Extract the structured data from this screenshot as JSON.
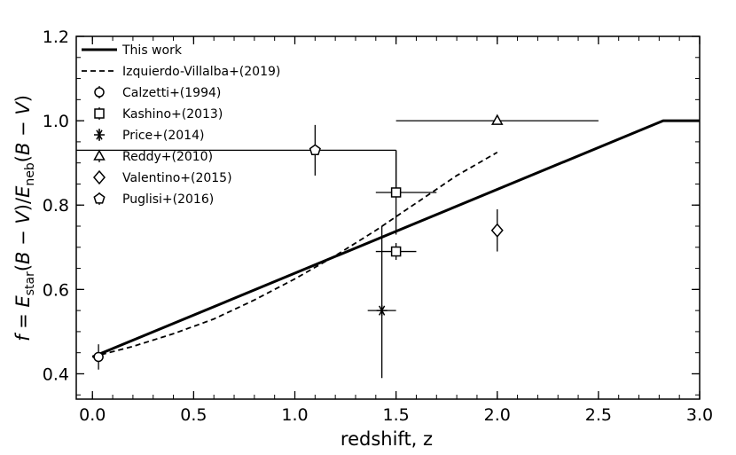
{
  "chart_data": {
    "type": "line",
    "title": "",
    "xlabel": "redshift, z",
    "ylabel": "f = E_star(B − V)/E_neb(B − V)",
    "xlim": [
      -0.08,
      3.0
    ],
    "ylim": [
      0.34,
      1.2
    ],
    "xticks": [
      0.0,
      0.5,
      1.0,
      1.5,
      2.0,
      2.5,
      3.0
    ],
    "xtick_labels": [
      "0.0",
      "0.5",
      "1.0",
      "1.5",
      "2.0",
      "2.5",
      "3.0"
    ],
    "yticks": [
      0.4,
      0.6,
      0.8,
      1.0,
      1.2
    ],
    "ytick_labels": [
      "0.4",
      "0.6",
      "0.8",
      "1.0",
      "1.2"
    ],
    "legend_position": "top-left",
    "lines": [
      {
        "name": "This work",
        "style": "solid",
        "x": [
          0.0,
          2.8,
          2.82,
          3.0
        ],
        "y": [
          0.44,
          0.996,
          1.0,
          1.0
        ]
      },
      {
        "name": "Izquierdo-Villalba+(2019)",
        "style": "dashed",
        "x": [
          0.0,
          0.2,
          0.4,
          0.6,
          0.8,
          1.0,
          1.2,
          1.4,
          1.6,
          1.8,
          2.0
        ],
        "y": [
          0.44,
          0.465,
          0.495,
          0.53,
          0.575,
          0.625,
          0.68,
          0.74,
          0.805,
          0.87,
          0.925
        ]
      }
    ],
    "points": [
      {
        "name": "Calzetti+(1994)",
        "marker": "circle",
        "x": 0.03,
        "y": 0.44,
        "xerr": [
          0,
          0
        ],
        "yerr": [
          0.03,
          0.03
        ]
      },
      {
        "name": "Kashino+(2013)",
        "marker": "square",
        "x": 1.5,
        "y": 0.83,
        "xerr": [
          0.1,
          0.2
        ],
        "yerr": [
          0.1,
          0.1
        ]
      },
      {
        "name": "Kashino+(2013)",
        "marker": "square",
        "x": 1.5,
        "y": 0.69,
        "xerr": [
          0.1,
          0.1
        ],
        "yerr": [
          0.02,
          0.02
        ]
      },
      {
        "name": "Price+(2014)",
        "marker": "asterisk",
        "x": 1.43,
        "y": 0.55,
        "xerr": [
          0.07,
          0.07
        ],
        "yerr": [
          0.16,
          0.2
        ]
      },
      {
        "name": "Reddy+(2010)",
        "marker": "triangle",
        "x": 2.0,
        "y": 1.0,
        "xerr": [
          0.5,
          0.5
        ],
        "yerr": [
          0,
          0
        ]
      },
      {
        "name": "Valentino+(2015)",
        "marker": "diamond",
        "x": 2.0,
        "y": 0.74,
        "xerr": [
          0,
          0
        ],
        "yerr": [
          0.05,
          0.05
        ]
      },
      {
        "name": "Puglisi+(2016)",
        "marker": "pentagon",
        "x": 1.1,
        "y": 0.93,
        "xerr": [
          1.3,
          0.4
        ],
        "yerr": [
          0.06,
          0.06
        ]
      }
    ],
    "error_lines": [
      {
        "note": "Puglisi+(2016) asymmetric bracket",
        "x": [
          1.5,
          1.5
        ],
        "y": [
          0.93,
          0.83
        ]
      }
    ],
    "legend": [
      {
        "label": "This work",
        "symbol": "solid-line"
      },
      {
        "label": "Izquierdo-Villalba+(2019)",
        "symbol": "dashed-line"
      },
      {
        "label": "Calzetti+(1994)",
        "symbol": "circle"
      },
      {
        "label": "Kashino+(2013)",
        "symbol": "square"
      },
      {
        "label": "Price+(2014)",
        "symbol": "asterisk"
      },
      {
        "label": "Reddy+(2010)",
        "symbol": "triangle"
      },
      {
        "label": "Valentino+(2015)",
        "symbol": "diamond"
      },
      {
        "label": "Puglisi+(2016)",
        "symbol": "pentagon"
      }
    ]
  }
}
